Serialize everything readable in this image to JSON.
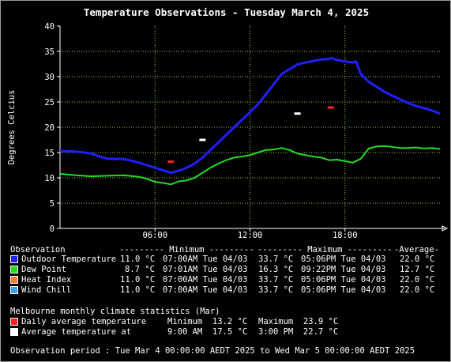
{
  "chart_data": {
    "type": "line",
    "title": "Temperature Observations - Tuesday March 4, 2025",
    "ylabel": "Degrees Celcius",
    "xlabel": "",
    "ylim": [
      0,
      40
    ],
    "yticks": [
      "0",
      "5",
      "10",
      "15",
      "20",
      "25",
      "30",
      "35",
      "40"
    ],
    "xlim": [
      0,
      24
    ],
    "xticks": [
      {
        "x": 6,
        "label": "06:00"
      },
      {
        "x": 12,
        "label": "12:00"
      },
      {
        "x": 18,
        "label": "18:00"
      }
    ],
    "grid": true,
    "series": [
      {
        "name": "Outdoor Temperature",
        "color": "#1f1fff",
        "x": [
          0,
          1,
          2,
          2.5,
          3,
          4,
          4.5,
          5,
          5.5,
          6,
          6.5,
          7,
          7.5,
          8,
          8.5,
          9,
          9.5,
          10,
          10.5,
          11,
          11.5,
          12,
          12.5,
          13,
          13.5,
          14,
          14.5,
          15,
          15.5,
          16,
          16.5,
          17,
          17.1,
          17.5,
          18,
          18.5,
          18.7,
          19,
          19.5,
          20,
          20.5,
          21,
          21.5,
          22,
          22.5,
          23,
          23.5,
          24
        ],
        "y": [
          15.3,
          15.2,
          14.8,
          14.2,
          13.8,
          13.7,
          13.4,
          13.0,
          12.5,
          12.0,
          11.5,
          11.0,
          11.4,
          12.0,
          12.8,
          14.0,
          15.5,
          17.0,
          18.5,
          20.0,
          21.5,
          23.0,
          24.5,
          26.5,
          28.5,
          30.5,
          31.5,
          32.4,
          32.8,
          33.1,
          33.4,
          33.5,
          33.7,
          33.3,
          33.0,
          32.8,
          33.0,
          30.5,
          29.0,
          28.0,
          27.0,
          26.2,
          25.5,
          24.8,
          24.2,
          23.8,
          23.3,
          22.7
        ]
      },
      {
        "name": "Dew Point",
        "color": "#22dd22",
        "x": [
          0,
          1,
          2,
          3,
          4,
          5,
          5.5,
          6,
          6.5,
          7,
          7.5,
          8,
          8.5,
          9,
          9.5,
          10,
          10.5,
          11,
          11.5,
          12,
          12.5,
          13,
          13.5,
          14,
          14.5,
          15,
          15.5,
          16,
          16.5,
          17,
          17.5,
          18,
          18.5,
          19,
          19.5,
          20,
          20.5,
          21,
          21.5,
          22,
          22.5,
          23,
          23.5,
          24
        ],
        "y": [
          10.8,
          10.5,
          10.3,
          10.4,
          10.5,
          10.2,
          9.8,
          9.2,
          9.0,
          8.7,
          9.3,
          9.5,
          10.0,
          11.0,
          12.0,
          12.8,
          13.5,
          14.0,
          14.2,
          14.5,
          15.0,
          15.5,
          15.6,
          15.9,
          15.5,
          14.8,
          14.5,
          14.2,
          14.0,
          13.5,
          13.6,
          13.3,
          13.0,
          13.8,
          15.8,
          16.2,
          16.3,
          16.1,
          15.9,
          15.9,
          16.0,
          15.8,
          15.9,
          15.7
        ]
      }
    ],
    "markers": [
      {
        "name": "Daily average temperature minimum",
        "x": 7,
        "y": 13.2,
        "color": "#ff2222"
      },
      {
        "name": "Daily average temperature maximum",
        "x": 17.1,
        "y": 23.9,
        "color": "#ff2222"
      },
      {
        "name": "Average temperature at 9:00 AM",
        "x": 9,
        "y": 17.5,
        "color": "#ffffff"
      },
      {
        "name": "Average temperature at 3:00 PM",
        "x": 15,
        "y": 22.7,
        "color": "#ffffff"
      }
    ]
  },
  "legend": {
    "header": {
      "observation": "Observation",
      "minimum": "--------- Minimum ---------",
      "maximum": "--------- Maximum ---------",
      "average": "-Average-"
    },
    "rows": [
      {
        "color": "#1f1fff",
        "label": "Outdoor Temperature",
        "min_val": "11.0 °C",
        "min_time": "07:00AM Tue 04/03",
        "max_val": "33.7 °C",
        "max_time": "05:06PM Tue 04/03",
        "avg": "22.0 °C"
      },
      {
        "color": "#22dd22",
        "label": "Dew Point",
        "min_val": "8.7 °C",
        "min_time": "07:01AM Tue 04/03",
        "max_val": "16.3 °C",
        "max_time": "09:22PM Tue 04/03",
        "avg": "12.7 °C"
      },
      {
        "color": "#f08030",
        "label": "Heat Index",
        "min_val": "11.0 °C",
        "min_time": "07:00AM Tue 04/03",
        "max_val": "33.7 °C",
        "max_time": "05:06PM Tue 04/03",
        "avg": "22.0 °C"
      },
      {
        "color": "#3aa0e8",
        "label": "Wind Chill",
        "min_val": "11.0 °C",
        "min_time": "07:00AM Tue 04/03",
        "max_val": "33.7 °C",
        "max_time": "05:06PM Tue 04/03",
        "avg": "22.0 °C"
      }
    ]
  },
  "climate": {
    "header": "Melbourne monthly climate statistics (Mar)",
    "rows": [
      {
        "color": "#ff2222",
        "label": "Daily average temperature",
        "a": "Minimum  13.2 °C",
        "b": "Maximum  23.9 °C"
      },
      {
        "color": "#ffffff",
        "label": "Average temperature at",
        "a": "9:00 AM  17.5 °C",
        "b": "3:00 PM  22.7 °C"
      }
    ]
  },
  "period": "Observation period : Tue Mar 4 00:00:00 AEDT 2025 to Wed Mar 5 00:00:00 AEDT 2025"
}
